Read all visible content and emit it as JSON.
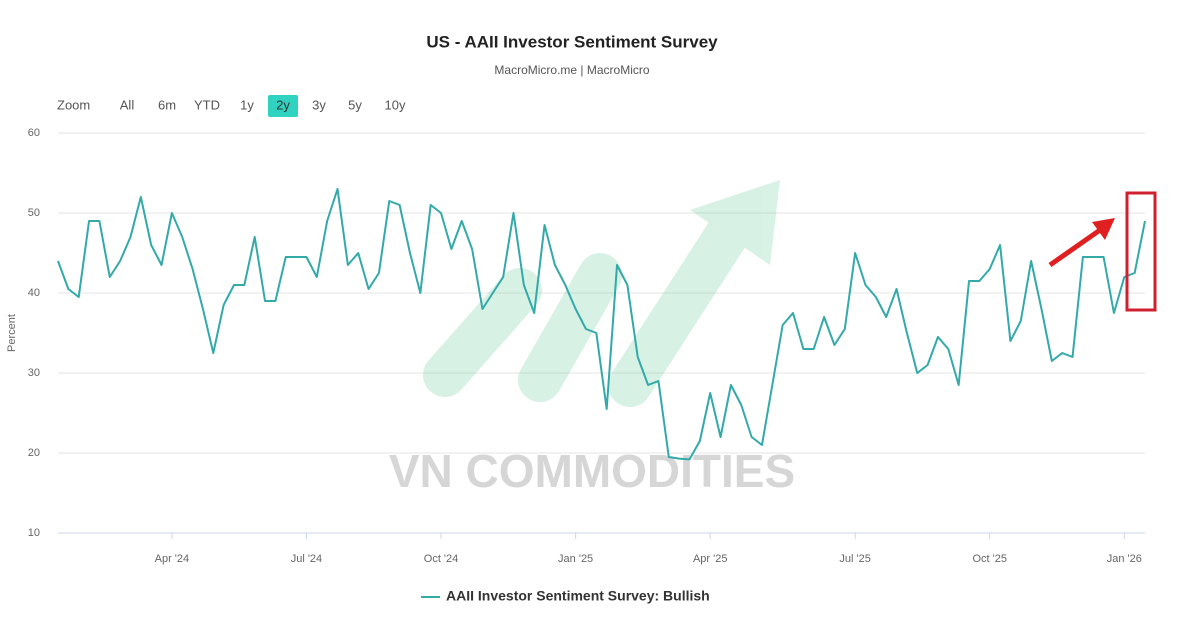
{
  "chart_data": {
    "type": "line",
    "title": "US - AAII Investor Sentiment Survey",
    "subtitle": "MacroMicro.me | MacroMicro",
    "y_label": "Percent",
    "watermark": "VN COMMODITIES",
    "range_selector": {
      "label": "Zoom",
      "buttons": [
        "All",
        "6m",
        "YTD",
        "1y",
        "2y",
        "3y",
        "5y",
        "10y"
      ],
      "selected": 4
    },
    "categories": [
      null,
      null,
      null,
      null,
      null,
      null,
      null,
      null,
      null,
      null,
      null,
      "Apr '24",
      null,
      null,
      null,
      null,
      null,
      null,
      null,
      null,
      null,
      null,
      null,
      null,
      "Jul '24",
      null,
      null,
      null,
      null,
      null,
      null,
      null,
      null,
      null,
      null,
      null,
      null,
      "Oct '24",
      null,
      null,
      null,
      null,
      null,
      null,
      null,
      null,
      null,
      null,
      null,
      null,
      "Jan '25",
      null,
      null,
      null,
      null,
      null,
      null,
      null,
      null,
      null,
      null,
      null,
      null,
      "Apr '25",
      null,
      null,
      null,
      null,
      null,
      null,
      null,
      null,
      null,
      null,
      null,
      null,
      null,
      "Jul '25",
      null,
      null,
      null,
      null,
      null,
      null,
      null,
      null,
      null,
      null,
      null,
      null,
      "Oct '25",
      null,
      null,
      null,
      null,
      null,
      null,
      null,
      null,
      null,
      null,
      null,
      null,
      "Jan '26",
      null,
      null
    ],
    "series": [
      {
        "name": "AAII Investor Sentiment Survey: Bullish",
        "color": "#33a9a9",
        "values": [
          44,
          40.5,
          39.5,
          49,
          49,
          42,
          44,
          47,
          52,
          46,
          43.5,
          50,
          47,
          43,
          38,
          32.5,
          38.5,
          41,
          41,
          47,
          39,
          39,
          44.5,
          44.5,
          44.5,
          42,
          49,
          53,
          43.5,
          45,
          40.5,
          42.5,
          51.5,
          51,
          45,
          40,
          51,
          50,
          45.5,
          49,
          45.5,
          38,
          40,
          42,
          50,
          41,
          37.5,
          48.5,
          43.5,
          41,
          38,
          35.5,
          35,
          25.5,
          43.5,
          41,
          32,
          28.5,
          29,
          19.5,
          19.3,
          19.2,
          21.5,
          27.5,
          22,
          28.5,
          26,
          22,
          21,
          28.5,
          36,
          37.5,
          33,
          33,
          37,
          33.5,
          35.5,
          45,
          41,
          39.5,
          37,
          40.5,
          35,
          30,
          31,
          34.5,
          33,
          28.5,
          41.5,
          41.5,
          43,
          46,
          34,
          36.5,
          44,
          38,
          31.5,
          32.5,
          32,
          44.5,
          44.5,
          44.5,
          37.5,
          42,
          42.5,
          49
        ]
      }
    ],
    "ylim": [
      10,
      60
    ],
    "yticks": [
      10,
      20,
      30,
      40,
      50,
      60
    ],
    "grid": true
  }
}
